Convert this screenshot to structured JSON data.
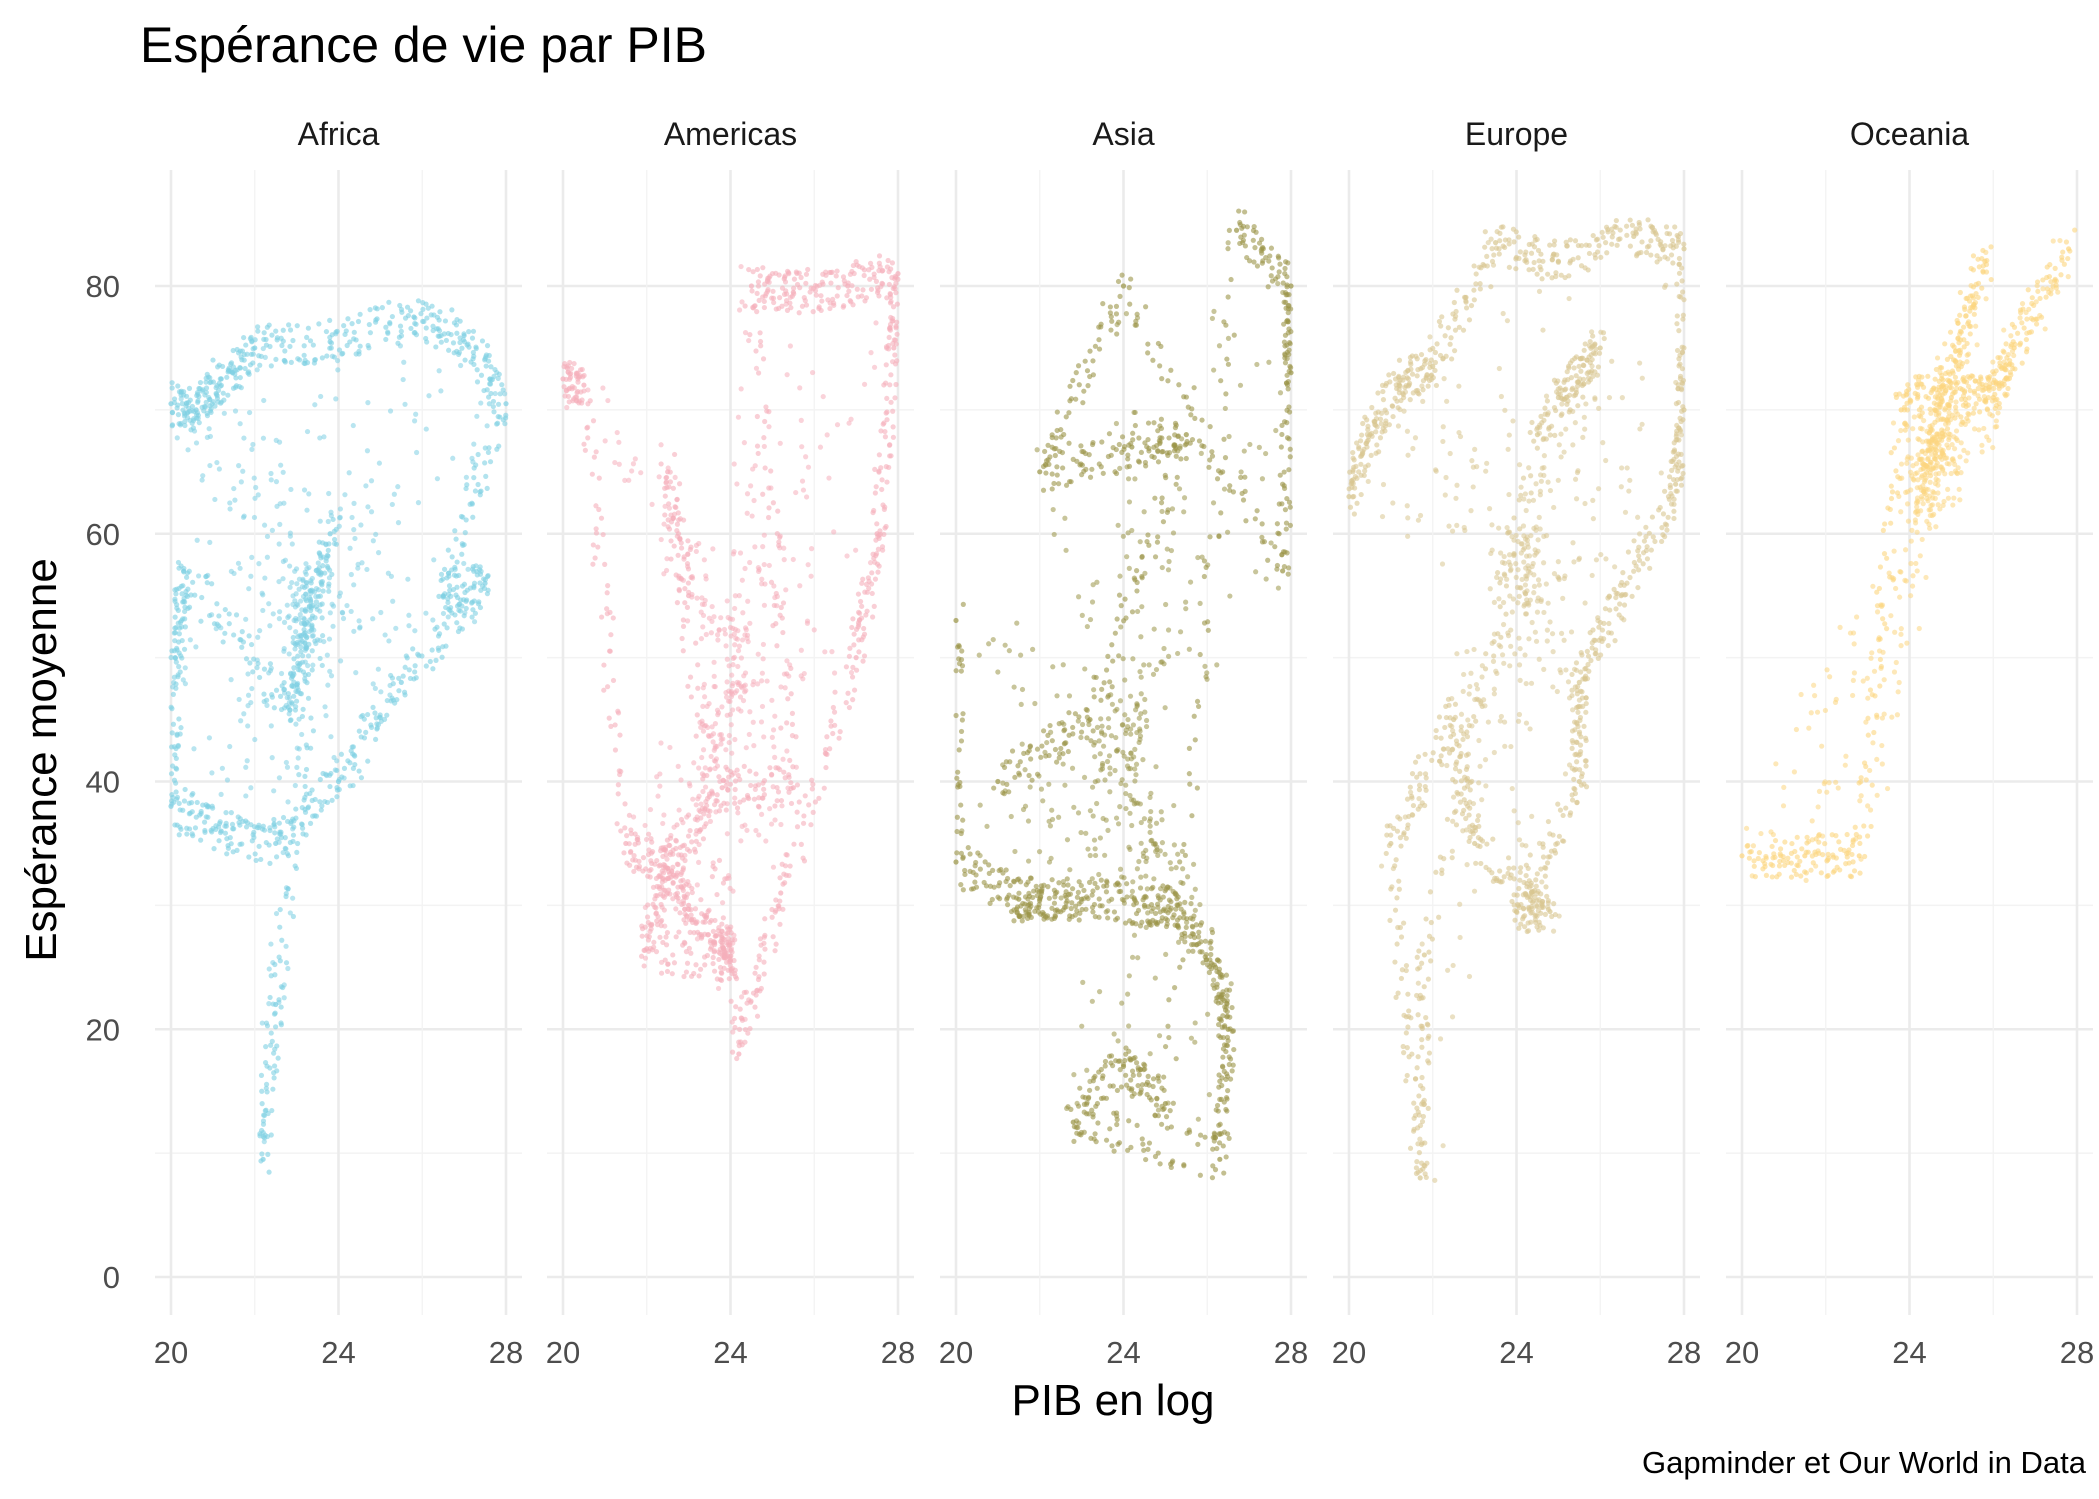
{
  "chart_data": {
    "type": "scatter",
    "title": "Espérance de vie par PIB",
    "xlabel": "PIB en log",
    "ylabel": "Espérance moyenne",
    "caption": "Gapminder et Our World in Data",
    "xlim": [
      20,
      28
    ],
    "ylim": [
      0,
      85
    ],
    "x_ticks": [
      "20",
      "24",
      "28"
    ],
    "y_ticks": [
      "0",
      "20",
      "40",
      "60",
      "80"
    ],
    "grid": true,
    "legend": "none",
    "facets": [
      {
        "name": "Africa",
        "color": "#7fd0e3",
        "anchors": [
          [
            20.0,
            70.5
          ],
          [
            20.6,
            70
          ],
          [
            21.2,
            72.5
          ],
          [
            22.0,
            75
          ],
          [
            23.8,
            75.5
          ],
          [
            25.8,
            77.5
          ],
          [
            27.0,
            76
          ],
          [
            28.0,
            70.5
          ],
          [
            26.5,
            55
          ],
          [
            27.5,
            56
          ],
          [
            25.5,
            48
          ],
          [
            24.0,
            40
          ],
          [
            22.5,
            35
          ],
          [
            21.2,
            36
          ],
          [
            20.0,
            38
          ],
          [
            20.1,
            50
          ],
          [
            20.3,
            57
          ],
          [
            22.8,
            46
          ],
          [
            23.2,
            52
          ],
          [
            23.8,
            60
          ],
          [
            22.5,
            22
          ],
          [
            22.2,
            9.5
          ]
        ]
      },
      {
        "name": "Americas",
        "color": "#f5afbb",
        "anchors": [
          [
            20.0,
            72.5
          ],
          [
            20.5,
            72
          ],
          [
            21.5,
            35
          ],
          [
            22.5,
            33
          ],
          [
            23.0,
            30
          ],
          [
            23.8,
            27
          ],
          [
            24.0,
            25.5
          ],
          [
            22.0,
            26.5
          ],
          [
            22.5,
            33
          ],
          [
            23.8,
            39.5
          ],
          [
            25.5,
            39.5
          ],
          [
            24.5,
            80
          ],
          [
            25.5,
            79.5
          ],
          [
            26.8,
            80
          ],
          [
            28.0,
            81
          ],
          [
            27.9,
            75
          ],
          [
            27.5,
            60
          ],
          [
            27.0,
            50
          ],
          [
            25.2,
            31
          ],
          [
            24.2,
            18
          ],
          [
            22.5,
            65
          ],
          [
            23.0,
            55
          ]
        ]
      },
      {
        "name": "Asia",
        "color": "#9b9548",
        "anchors": [
          [
            20.0,
            53
          ],
          [
            20.0,
            33.5
          ],
          [
            21.5,
            30.5
          ],
          [
            22.0,
            30.5
          ],
          [
            23.0,
            30.5
          ],
          [
            24.5,
            30
          ],
          [
            25.3,
            30
          ],
          [
            26.2,
            25
          ],
          [
            26.5,
            20
          ],
          [
            26.3,
            9.5
          ],
          [
            22.8,
            12.5
          ],
          [
            24.0,
            17
          ],
          [
            25.0,
            14
          ],
          [
            26.7,
            84.5
          ],
          [
            28.0,
            80
          ],
          [
            28.0,
            73
          ],
          [
            27.8,
            57
          ],
          [
            24.0,
            80
          ],
          [
            22.0,
            65
          ],
          [
            24.2,
            67
          ],
          [
            25.5,
            68
          ],
          [
            23.2,
            45
          ],
          [
            21.0,
            40
          ]
        ]
      },
      {
        "name": "Europe",
        "color": "#d8c791",
        "anchors": [
          [
            20.0,
            63
          ],
          [
            20.5,
            68
          ],
          [
            21.2,
            72
          ],
          [
            22.0,
            73.5
          ],
          [
            23.5,
            83.5
          ],
          [
            25.0,
            82
          ],
          [
            26.8,
            84
          ],
          [
            28.0,
            83
          ],
          [
            28.0,
            70
          ],
          [
            27.8,
            64
          ],
          [
            26.5,
            55
          ],
          [
            25.5,
            48
          ],
          [
            25.5,
            40
          ],
          [
            24.0,
            29.5
          ],
          [
            24.8,
            29.5
          ],
          [
            23.0,
            35
          ],
          [
            22.5,
            45
          ],
          [
            21.0,
            35
          ],
          [
            21.7,
            8
          ],
          [
            21.8,
            26
          ],
          [
            24.5,
            68
          ],
          [
            26.0,
            75
          ],
          [
            25.0,
            71
          ]
        ]
      },
      {
        "name": "Oceania",
        "color": "#fcd67f",
        "anchors": [
          [
            20.0,
            34
          ],
          [
            21.5,
            34
          ],
          [
            22.8,
            34
          ],
          [
            23.8,
            70
          ],
          [
            24.8,
            72
          ],
          [
            25.8,
            82
          ],
          [
            24.4,
            65.5
          ],
          [
            25.0,
            71
          ],
          [
            26.0,
            71
          ],
          [
            26.5,
            75
          ],
          [
            27.8,
            83
          ]
        ]
      }
    ]
  }
}
